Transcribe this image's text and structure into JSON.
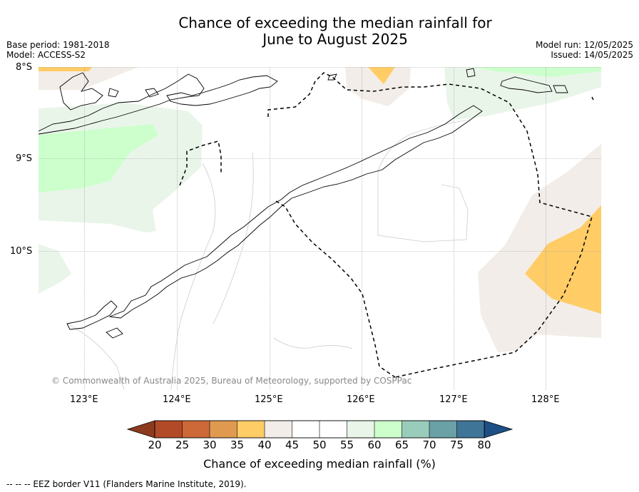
{
  "title_line1": "Chance of exceeding the median rainfall for",
  "title_line2": "June to August 2025",
  "base_period": "Base period: 1981-2018",
  "model": "Model: ACCESS-S2",
  "model_run": "Model run: 12/05/2025",
  "issued": "Issued: 14/05/2025",
  "map": {
    "lat_ticks": [
      "8°S",
      "9°S",
      "10°S"
    ],
    "lon_ticks": [
      "123°E",
      "124°E",
      "125°E",
      "126°E",
      "127°E",
      "128°E"
    ],
    "copyright": "© Commonwealth of Australia 2025, Bureau of Meteorology, supported by COSPPac",
    "colors": {
      "c35_40": "#ffcc66",
      "c40_45": "#f2ede8",
      "c55_60": "#eaf5ea",
      "c60_65": "#ccffcc"
    }
  },
  "colorbar": {
    "label": "Chance of exceeding median rainfall (%)",
    "ticks": [
      "20",
      "25",
      "30",
      "35",
      "40",
      "45",
      "50",
      "55",
      "60",
      "65",
      "70",
      "75",
      "80"
    ],
    "colors": [
      "#b24a28",
      "#cd6838",
      "#e09a50",
      "#ffcc66",
      "#f2ede8",
      "#ffffff",
      "#ffffff",
      "#eaf5ea",
      "#ccffcc",
      "#99ccbb",
      "#6aa1a6",
      "#3f7597"
    ],
    "under_color": "#8e3a1f",
    "over_color": "#1e4f86"
  },
  "footnote": "--  --  -- EEZ border V11 (Flanders Marine Institute, 2019)."
}
